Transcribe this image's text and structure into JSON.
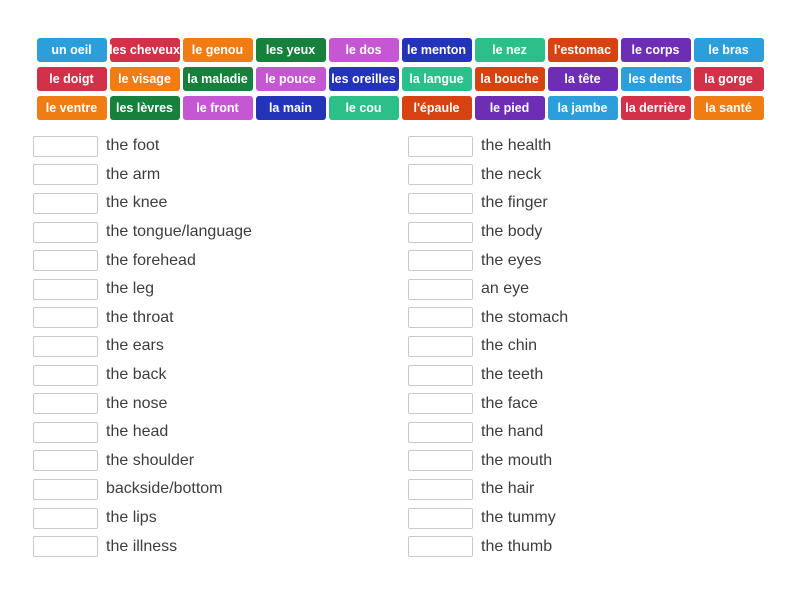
{
  "palette": {
    "blue": "#2C9EDC",
    "red": "#D33149",
    "orange": "#EF7D14",
    "green": "#17803D",
    "orchid": "#C558D2",
    "navy": "#2434B8",
    "emerald": "#2CBF8A",
    "vermillion": "#D64310",
    "purple": "#6D2EB5"
  },
  "tile_text_color": "#FFFFFF",
  "word_bank": {
    "rows": [
      [
        {
          "label": "un oeil",
          "color": "blue"
        },
        {
          "label": "les cheveux",
          "color": "red"
        },
        {
          "label": "le genou",
          "color": "orange"
        },
        {
          "label": "les yeux",
          "color": "green"
        },
        {
          "label": "le dos",
          "color": "orchid"
        },
        {
          "label": "le menton",
          "color": "navy"
        },
        {
          "label": "le nez",
          "color": "emerald"
        },
        {
          "label": "l'estomac",
          "color": "vermillion"
        },
        {
          "label": "le corps",
          "color": "purple"
        },
        {
          "label": "le bras",
          "color": "blue"
        }
      ],
      [
        {
          "label": "le doigt",
          "color": "red"
        },
        {
          "label": "le visage",
          "color": "orange"
        },
        {
          "label": "la maladie",
          "color": "green"
        },
        {
          "label": "le pouce",
          "color": "orchid"
        },
        {
          "label": "les oreilles",
          "color": "navy"
        },
        {
          "label": "la langue",
          "color": "emerald"
        },
        {
          "label": "la bouche",
          "color": "vermillion"
        },
        {
          "label": "la tête",
          "color": "purple"
        },
        {
          "label": "les dents",
          "color": "blue"
        },
        {
          "label": "la gorge",
          "color": "red"
        }
      ],
      [
        {
          "label": "le ventre",
          "color": "orange"
        },
        {
          "label": "les lèvres",
          "color": "green"
        },
        {
          "label": "le front",
          "color": "orchid"
        },
        {
          "label": "la main",
          "color": "navy"
        },
        {
          "label": "le cou",
          "color": "emerald"
        },
        {
          "label": "l'épaule",
          "color": "vermillion"
        },
        {
          "label": "le pied",
          "color": "purple"
        },
        {
          "label": "la jambe",
          "color": "blue"
        },
        {
          "label": "la derrière",
          "color": "red"
        },
        {
          "label": "la santé",
          "color": "orange"
        }
      ]
    ]
  },
  "match_list": {
    "left": [
      "the foot",
      "the arm",
      "the knee",
      "the tongue/language",
      "the forehead",
      "the leg",
      "the throat",
      "the ears",
      "the back",
      "the nose",
      "the head",
      "the shoulder",
      "backside/bottom",
      "the lips",
      "the illness"
    ],
    "right": [
      "the health",
      "the neck",
      "the finger",
      "the body",
      "the eyes",
      "an eye",
      "the stomach",
      "the chin",
      "the teeth",
      "the face",
      "the hand",
      "the mouth",
      "the hair",
      "the tummy",
      "the thumb"
    ]
  }
}
